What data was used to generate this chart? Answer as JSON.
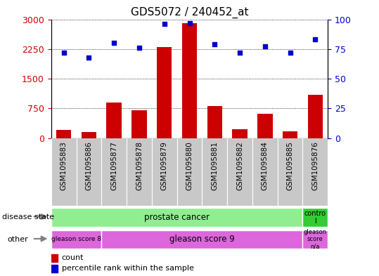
{
  "title": "GDS5072 / 240452_at",
  "samples": [
    "GSM1095883",
    "GSM1095886",
    "GSM1095877",
    "GSM1095878",
    "GSM1095879",
    "GSM1095880",
    "GSM1095881",
    "GSM1095882",
    "GSM1095884",
    "GSM1095885",
    "GSM1095876"
  ],
  "counts": [
    200,
    150,
    900,
    700,
    2300,
    2900,
    800,
    230,
    620,
    170,
    1100
  ],
  "percentiles": [
    72,
    68,
    80,
    76,
    96,
    97,
    79,
    72,
    77,
    72,
    83
  ],
  "bar_color": "#cc0000",
  "dot_color": "#0000cc",
  "left_axis_color": "#cc0000",
  "right_axis_color": "#0000cc",
  "left_yticks": [
    0,
    750,
    1500,
    2250,
    3000
  ],
  "right_yticks": [
    0,
    25,
    50,
    75,
    100
  ],
  "ylim_left": [
    0,
    3000
  ],
  "ylim_right": [
    0,
    100
  ],
  "disease_state_colors": {
    "prostate cancer": "#90ee90",
    "control": "#33cc33"
  },
  "other_color": "#dd66dd",
  "tick_bg_color": "#c8c8c8",
  "legend_count_color": "#cc0000",
  "legend_dot_color": "#0000cc",
  "gleason8_span": 2,
  "gleason9_span": 8,
  "gleason_na_span": 1,
  "prostate_span": 10,
  "control_span": 1
}
